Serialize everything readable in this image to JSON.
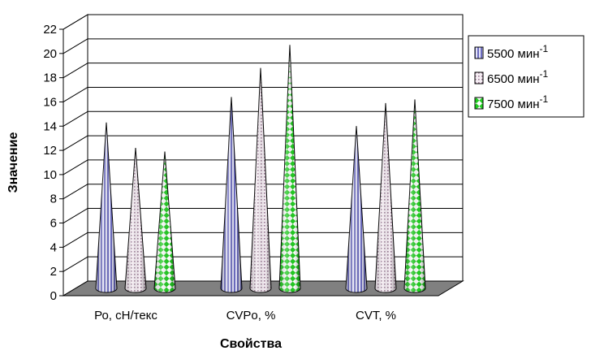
{
  "chart_data": {
    "type": "bar",
    "bar_shape": "cone",
    "title": "",
    "xlabel": "Свойства",
    "ylabel": "Значение",
    "categories": [
      "Ро, сН/текс",
      "CVPо, %",
      "CVT, %"
    ],
    "series": [
      {
        "name": "5500 мин",
        "name_sup": "-1",
        "values": [
          13.7,
          15.8,
          13.4
        ],
        "color": "#7b7bc8",
        "pattern": "vertical-stripes"
      },
      {
        "name": "6500 мин",
        "name_sup": "-1",
        "values": [
          11.6,
          18.2,
          15.3
        ],
        "color": "#b89ab0",
        "pattern": "dots"
      },
      {
        "name": "7500 мин",
        "name_sup": "-1",
        "values": [
          11.3,
          20.1,
          15.6
        ],
        "color": "#22cc22",
        "pattern": "checker"
      }
    ],
    "ylim": [
      0,
      22
    ],
    "yticks": [
      0,
      2,
      4,
      6,
      8,
      10,
      12,
      14,
      16,
      18,
      20,
      22
    ],
    "grid": true,
    "legend_position": "right",
    "floor_color": "#808080"
  }
}
